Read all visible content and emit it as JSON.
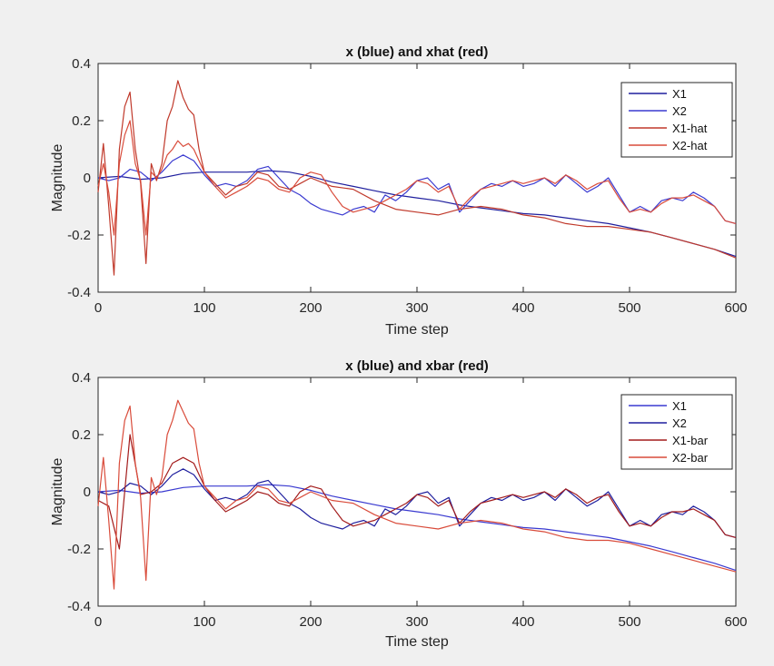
{
  "chart_data": [
    {
      "type": "line",
      "title": "x (blue) and xhat (red)",
      "xlabel": "Time step",
      "ylabel": "Magnitude",
      "xlim": [
        0,
        600
      ],
      "ylim": [
        -0.4,
        0.4
      ],
      "xticks": [
        0,
        100,
        200,
        300,
        400,
        500,
        600
      ],
      "xtick_labels": [
        "0",
        "100",
        "200",
        "300",
        "400",
        "500",
        "600"
      ],
      "yticks": [
        0.4,
        0.2,
        0,
        -0.2,
        -0.4
      ],
      "ytick_labels": [
        "0.4",
        "0.2",
        "0",
        "-0.2",
        "-0.4"
      ],
      "grid": false,
      "legend_position": "top-right",
      "series": [
        {
          "name": "X1",
          "color": "#1f1f9e",
          "x": [
            0,
            20,
            40,
            60,
            80,
            100,
            120,
            140,
            160,
            180,
            200,
            220,
            240,
            260,
            280,
            300,
            320,
            340,
            360,
            380,
            400,
            420,
            440,
            460,
            480,
            500,
            520,
            540,
            560,
            580,
            600
          ],
          "y": [
            0,
            0.005,
            -0.005,
            0,
            0.015,
            0.02,
            0.02,
            0.02,
            0.025,
            0.02,
            0.005,
            -0.015,
            -0.03,
            -0.045,
            -0.06,
            -0.07,
            -0.08,
            -0.095,
            -0.105,
            -0.115,
            -0.125,
            -0.13,
            -0.14,
            -0.15,
            -0.16,
            -0.175,
            -0.19,
            -0.21,
            -0.23,
            -0.25,
            -0.275
          ]
        },
        {
          "name": "X2",
          "color": "#3a3ad0",
          "x": [
            0,
            10,
            20,
            30,
            40,
            50,
            60,
            70,
            80,
            90,
            100,
            110,
            120,
            130,
            140,
            150,
            160,
            170,
            180,
            190,
            200,
            210,
            220,
            230,
            240,
            250,
            260,
            270,
            280,
            290,
            300,
            310,
            320,
            330,
            340,
            350,
            360,
            370,
            380,
            390,
            400,
            410,
            420,
            430,
            440,
            450,
            460,
            470,
            480,
            490,
            500,
            510,
            520,
            530,
            540,
            550,
            560,
            570,
            580,
            590,
            600
          ],
          "y": [
            0,
            -0.01,
            0,
            0.03,
            0.02,
            -0.01,
            0.02,
            0.06,
            0.08,
            0.06,
            0.01,
            -0.03,
            -0.02,
            -0.03,
            -0.01,
            0.03,
            0.04,
            0.0,
            -0.04,
            -0.06,
            -0.09,
            -0.11,
            -0.12,
            -0.13,
            -0.11,
            -0.1,
            -0.12,
            -0.06,
            -0.08,
            -0.05,
            -0.01,
            0.0,
            -0.04,
            -0.02,
            -0.12,
            -0.08,
            -0.04,
            -0.02,
            -0.03,
            -0.01,
            -0.03,
            -0.02,
            0.0,
            -0.03,
            0.01,
            -0.02,
            -0.05,
            -0.03,
            0.0,
            -0.06,
            -0.12,
            -0.1,
            -0.12,
            -0.08,
            -0.07,
            -0.08,
            -0.05,
            -0.07,
            -0.1,
            -0.15,
            -0.16
          ]
        },
        {
          "name": "X1-hat",
          "color": "#c0392b",
          "x": [
            0,
            5,
            10,
            15,
            20,
            25,
            30,
            35,
            40,
            45,
            50,
            55,
            60,
            65,
            70,
            75,
            80,
            85,
            90,
            95,
            100,
            110,
            120,
            130,
            140,
            150,
            160,
            170,
            180,
            190,
            200,
            220,
            240,
            260,
            280,
            300,
            320,
            340,
            360,
            380,
            400,
            420,
            440,
            460,
            480,
            500,
            520,
            540,
            560,
            580,
            600
          ],
          "y": [
            -0.05,
            0.12,
            -0.1,
            -0.34,
            0.1,
            0.25,
            0.3,
            0.1,
            -0.02,
            -0.3,
            0.05,
            -0.01,
            0.05,
            0.2,
            0.25,
            0.34,
            0.28,
            0.24,
            0.22,
            0.1,
            0.02,
            -0.02,
            -0.06,
            -0.03,
            -0.02,
            0.02,
            0.01,
            -0.03,
            -0.04,
            -0.02,
            0.0,
            -0.03,
            -0.04,
            -0.08,
            -0.11,
            -0.12,
            -0.13,
            -0.11,
            -0.1,
            -0.11,
            -0.13,
            -0.14,
            -0.16,
            -0.17,
            -0.17,
            -0.18,
            -0.19,
            -0.21,
            -0.23,
            -0.25,
            -0.28
          ]
        },
        {
          "name": "X2-hat",
          "color": "#d94b3a",
          "x": [
            0,
            5,
            10,
            15,
            20,
            25,
            30,
            35,
            40,
            45,
            50,
            55,
            60,
            65,
            70,
            75,
            80,
            85,
            90,
            95,
            100,
            110,
            120,
            130,
            140,
            150,
            160,
            170,
            180,
            190,
            200,
            210,
            220,
            230,
            240,
            250,
            260,
            270,
            280,
            290,
            300,
            310,
            320,
            330,
            340,
            350,
            360,
            370,
            380,
            390,
            400,
            410,
            420,
            430,
            440,
            450,
            460,
            470,
            480,
            490,
            500,
            510,
            520,
            530,
            540,
            550,
            560,
            570,
            580,
            590,
            600
          ],
          "y": [
            -0.03,
            0.05,
            -0.05,
            -0.2,
            0.05,
            0.15,
            0.2,
            0.05,
            -0.01,
            -0.2,
            0.02,
            0.0,
            0.03,
            0.08,
            0.1,
            0.13,
            0.11,
            0.12,
            0.1,
            0.06,
            0.02,
            -0.03,
            -0.07,
            -0.05,
            -0.03,
            0.0,
            -0.01,
            -0.04,
            -0.05,
            0.0,
            0.02,
            0.01,
            -0.05,
            -0.1,
            -0.12,
            -0.11,
            -0.1,
            -0.08,
            -0.06,
            -0.04,
            -0.01,
            -0.02,
            -0.05,
            -0.03,
            -0.11,
            -0.07,
            -0.04,
            -0.03,
            -0.02,
            -0.01,
            -0.02,
            -0.01,
            0.0,
            -0.02,
            0.01,
            -0.01,
            -0.04,
            -0.02,
            -0.01,
            -0.07,
            -0.12,
            -0.11,
            -0.12,
            -0.09,
            -0.07,
            -0.07,
            -0.06,
            -0.08,
            -0.1,
            -0.15,
            -0.16
          ]
        }
      ],
      "legend": [
        "X1",
        "X2",
        "X1-hat",
        "X2-hat"
      ]
    },
    {
      "type": "line",
      "title": "x (blue) and xbar (red)",
      "xlabel": "Time step",
      "ylabel": "Magnitude",
      "xlim": [
        0,
        600
      ],
      "ylim": [
        -0.4,
        0.4
      ],
      "xticks": [
        0,
        100,
        200,
        300,
        400,
        500,
        600
      ],
      "xtick_labels": [
        "0",
        "100",
        "200",
        "300",
        "400",
        "500",
        "600"
      ],
      "yticks": [
        0.4,
        0.2,
        0,
        -0.2,
        -0.4
      ],
      "ytick_labels": [
        "0.4",
        "0.2",
        "0",
        "-0.2",
        "-0.4"
      ],
      "grid": false,
      "legend_position": "top-right",
      "series": [
        {
          "name": "X1",
          "color": "#3a3ad0",
          "x": [
            0,
            20,
            40,
            60,
            80,
            100,
            120,
            140,
            160,
            180,
            200,
            220,
            240,
            260,
            280,
            300,
            320,
            340,
            360,
            380,
            400,
            420,
            440,
            460,
            480,
            500,
            520,
            540,
            560,
            580,
            600
          ],
          "y": [
            0,
            0.005,
            -0.005,
            0,
            0.015,
            0.02,
            0.02,
            0.02,
            0.025,
            0.02,
            0.005,
            -0.015,
            -0.03,
            -0.045,
            -0.06,
            -0.07,
            -0.08,
            -0.095,
            -0.105,
            -0.115,
            -0.125,
            -0.13,
            -0.14,
            -0.15,
            -0.16,
            -0.175,
            -0.19,
            -0.21,
            -0.23,
            -0.25,
            -0.275
          ]
        },
        {
          "name": "X2",
          "color": "#1f1f9e",
          "x": [
            0,
            10,
            20,
            30,
            40,
            50,
            60,
            70,
            80,
            90,
            100,
            110,
            120,
            130,
            140,
            150,
            160,
            170,
            180,
            190,
            200,
            210,
            220,
            230,
            240,
            250,
            260,
            270,
            280,
            290,
            300,
            310,
            320,
            330,
            340,
            350,
            360,
            370,
            380,
            390,
            400,
            410,
            420,
            430,
            440,
            450,
            460,
            470,
            480,
            490,
            500,
            510,
            520,
            530,
            540,
            550,
            560,
            570,
            580,
            590,
            600
          ],
          "y": [
            0,
            -0.01,
            0,
            0.03,
            0.02,
            -0.01,
            0.02,
            0.06,
            0.08,
            0.06,
            0.01,
            -0.03,
            -0.02,
            -0.03,
            -0.01,
            0.03,
            0.04,
            0.0,
            -0.04,
            -0.06,
            -0.09,
            -0.11,
            -0.12,
            -0.13,
            -0.11,
            -0.1,
            -0.12,
            -0.06,
            -0.08,
            -0.05,
            -0.01,
            0.0,
            -0.04,
            -0.02,
            -0.12,
            -0.08,
            -0.04,
            -0.02,
            -0.03,
            -0.01,
            -0.03,
            -0.02,
            0.0,
            -0.03,
            0.01,
            -0.02,
            -0.05,
            -0.03,
            0.0,
            -0.06,
            -0.12,
            -0.1,
            -0.12,
            -0.08,
            -0.07,
            -0.08,
            -0.05,
            -0.07,
            -0.1,
            -0.15,
            -0.16
          ]
        },
        {
          "name": "X1-bar",
          "color": "#a31c1c",
          "x": [
            0,
            10,
            20,
            30,
            40,
            50,
            60,
            70,
            80,
            90,
            100,
            110,
            120,
            130,
            140,
            150,
            160,
            170,
            180,
            190,
            200,
            210,
            220,
            230,
            240,
            250,
            260,
            270,
            280,
            290,
            300,
            310,
            320,
            330,
            340,
            350,
            360,
            370,
            380,
            390,
            400,
            410,
            420,
            430,
            440,
            450,
            460,
            470,
            480,
            490,
            500,
            510,
            520,
            530,
            540,
            550,
            560,
            570,
            580,
            590,
            600
          ],
          "y": [
            -0.03,
            -0.05,
            -0.2,
            0.2,
            -0.01,
            0.0,
            0.03,
            0.1,
            0.12,
            0.1,
            0.02,
            -0.03,
            -0.07,
            -0.05,
            -0.03,
            0.0,
            -0.01,
            -0.04,
            -0.05,
            0.0,
            0.02,
            0.01,
            -0.05,
            -0.1,
            -0.12,
            -0.11,
            -0.1,
            -0.08,
            -0.06,
            -0.04,
            -0.01,
            -0.02,
            -0.05,
            -0.03,
            -0.11,
            -0.07,
            -0.04,
            -0.03,
            -0.02,
            -0.01,
            -0.02,
            -0.01,
            0.0,
            -0.02,
            0.01,
            -0.01,
            -0.04,
            -0.02,
            -0.01,
            -0.07,
            -0.12,
            -0.11,
            -0.12,
            -0.09,
            -0.07,
            -0.07,
            -0.06,
            -0.08,
            -0.1,
            -0.15,
            -0.16
          ]
        },
        {
          "name": "X2-bar",
          "color": "#d94b3a",
          "x": [
            0,
            5,
            10,
            15,
            20,
            25,
            30,
            35,
            40,
            45,
            50,
            55,
            60,
            65,
            70,
            75,
            80,
            85,
            90,
            95,
            100,
            110,
            120,
            130,
            140,
            150,
            160,
            170,
            180,
            190,
            200,
            220,
            240,
            260,
            280,
            300,
            320,
            340,
            360,
            380,
            400,
            420,
            440,
            460,
            480,
            500,
            520,
            540,
            560,
            580,
            600
          ],
          "y": [
            -0.05,
            0.12,
            -0.1,
            -0.34,
            0.1,
            0.25,
            0.3,
            0.1,
            -0.02,
            -0.31,
            0.05,
            -0.01,
            0.05,
            0.2,
            0.25,
            0.32,
            0.28,
            0.24,
            0.22,
            0.1,
            0.02,
            -0.02,
            -0.06,
            -0.03,
            -0.02,
            0.02,
            0.01,
            -0.03,
            -0.04,
            -0.02,
            0.0,
            -0.03,
            -0.04,
            -0.08,
            -0.11,
            -0.12,
            -0.13,
            -0.11,
            -0.1,
            -0.11,
            -0.13,
            -0.14,
            -0.16,
            -0.17,
            -0.17,
            -0.18,
            -0.2,
            -0.22,
            -0.24,
            -0.26,
            -0.28
          ]
        }
      ],
      "legend": [
        "X1",
        "X2",
        "X1-bar",
        "X2-bar"
      ]
    }
  ]
}
